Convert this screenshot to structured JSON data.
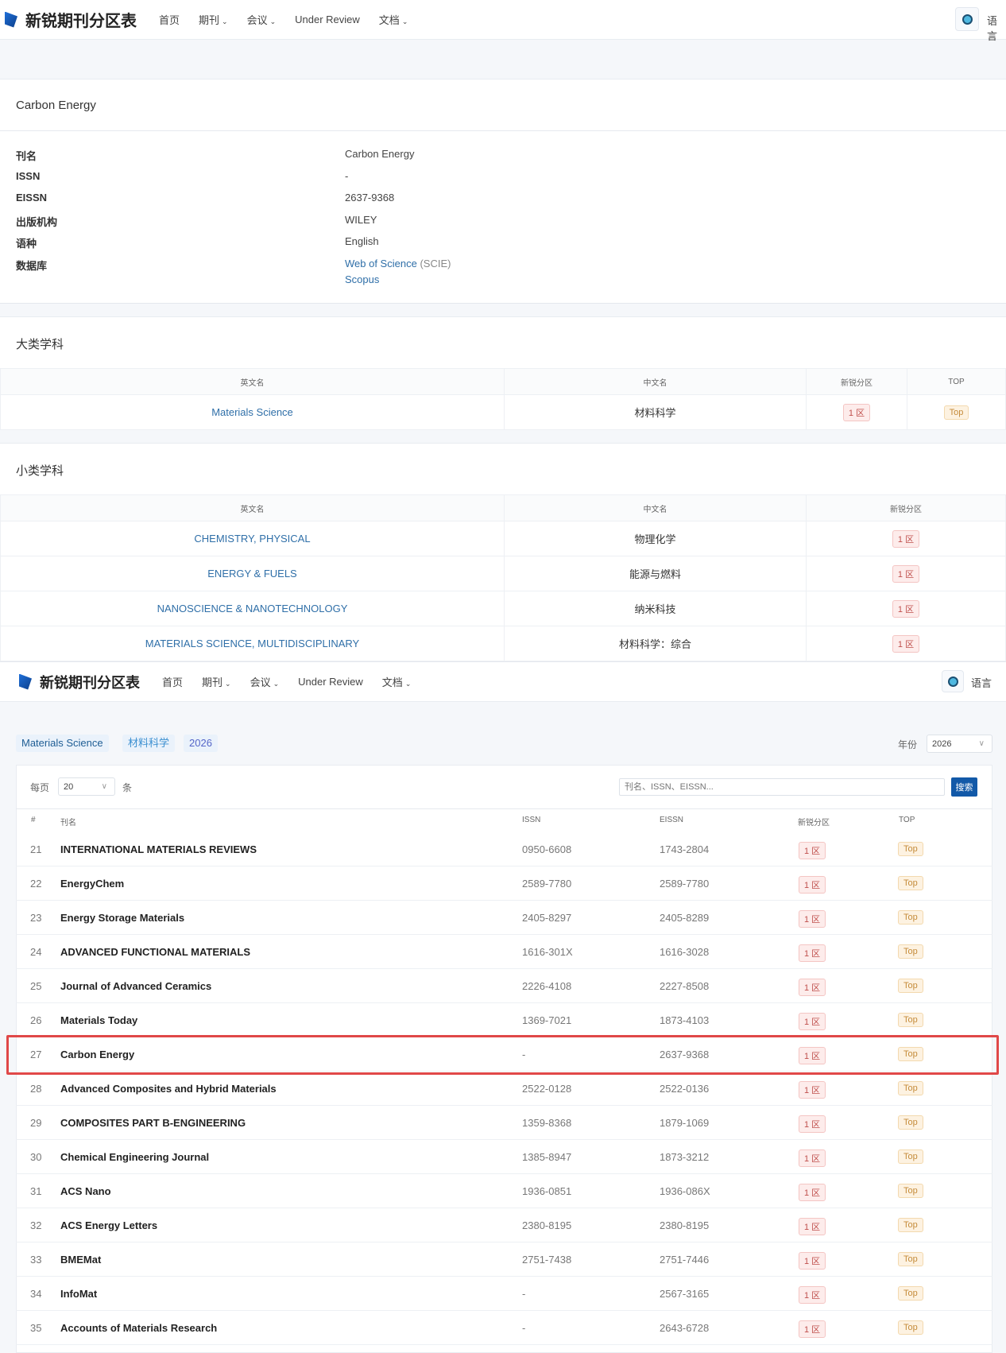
{
  "nav": {
    "brand": "新锐期刊分区表",
    "items": [
      "首页",
      "期刊",
      "会议",
      "Under Review",
      "文档"
    ],
    "dropdown_caret": "⌄",
    "language": "语言"
  },
  "journal": {
    "title": "Carbon Energy",
    "fields": [
      {
        "label": "刊名",
        "value": "Carbon Energy"
      },
      {
        "label": "ISSN",
        "value": "-"
      },
      {
        "label": "EISSN",
        "value": "2637-9368"
      },
      {
        "label": "出版机构",
        "value": "WILEY"
      },
      {
        "label": "语种",
        "value": "English"
      },
      {
        "label": "数据库",
        "links": [
          "Web of Science",
          "Scopus"
        ],
        "wos_suffix": "(SCIE)"
      }
    ]
  },
  "major": {
    "title": "大类学科",
    "headers": [
      "英文名",
      "中文名",
      "新锐分区",
      "TOP"
    ],
    "row": {
      "en": "Materials Science",
      "cn": "材料科学",
      "zone": "1 区",
      "top": "Top"
    }
  },
  "minor": {
    "title": "小类学科",
    "headers": [
      "英文名",
      "中文名",
      "新锐分区"
    ],
    "rows": [
      {
        "en": "CHEMISTRY, PHYSICAL",
        "cn": "物理化学",
        "zone": "1 区"
      },
      {
        "en": "ENERGY & FUELS",
        "cn": "能源与燃料",
        "zone": "1 区"
      },
      {
        "en": "NANOSCIENCE & NANOTECHNOLOGY",
        "cn": "纳米科技",
        "zone": "1 区"
      },
      {
        "en": "MATERIALS SCIENCE, MULTIDISCIPLINARY",
        "cn": "材料科学：综合",
        "zone": "1 区"
      }
    ]
  },
  "list": {
    "tags": [
      "Materials Science",
      "材料科学",
      "2026"
    ],
    "year_label": "年份",
    "year_value": "2026",
    "per_page_label": "每页",
    "per_page_value": "20",
    "per_page_unit": "条",
    "search_placeholder": "刊名、ISSN、EISSN...",
    "search_button": "搜索",
    "headers": [
      "#",
      "刊名",
      "ISSN",
      "EISSN",
      "新锐分区",
      "TOP"
    ],
    "highlighted_row": 27,
    "rows": [
      {
        "n": "21",
        "name": "INTERNATIONAL MATERIALS REVIEWS",
        "issn": "0950-6608",
        "eissn": "1743-2804",
        "zone": "1 区",
        "top": "Top"
      },
      {
        "n": "22",
        "name": "EnergyChem",
        "issn": "2589-7780",
        "eissn": "2589-7780",
        "zone": "1 区",
        "top": "Top"
      },
      {
        "n": "23",
        "name": "Energy Storage Materials",
        "issn": "2405-8297",
        "eissn": "2405-8289",
        "zone": "1 区",
        "top": "Top"
      },
      {
        "n": "24",
        "name": "ADVANCED FUNCTIONAL MATERIALS",
        "issn": "1616-301X",
        "eissn": "1616-3028",
        "zone": "1 区",
        "top": "Top"
      },
      {
        "n": "25",
        "name": "Journal of Advanced Ceramics",
        "issn": "2226-4108",
        "eissn": "2227-8508",
        "zone": "1 区",
        "top": "Top"
      },
      {
        "n": "26",
        "name": "Materials Today",
        "issn": "1369-7021",
        "eissn": "1873-4103",
        "zone": "1 区",
        "top": "Top"
      },
      {
        "n": "27",
        "name": "Carbon Energy",
        "issn": "-",
        "eissn": "2637-9368",
        "zone": "1 区",
        "top": "Top"
      },
      {
        "n": "28",
        "name": "Advanced Composites and Hybrid Materials",
        "issn": "2522-0128",
        "eissn": "2522-0136",
        "zone": "1 区",
        "top": "Top"
      },
      {
        "n": "29",
        "name": "COMPOSITES PART B-ENGINEERING",
        "issn": "1359-8368",
        "eissn": "1879-1069",
        "zone": "1 区",
        "top": "Top"
      },
      {
        "n": "30",
        "name": "Chemical Engineering Journal",
        "issn": "1385-8947",
        "eissn": "1873-3212",
        "zone": "1 区",
        "top": "Top"
      },
      {
        "n": "31",
        "name": "ACS Nano",
        "issn": "1936-0851",
        "eissn": "1936-086X",
        "zone": "1 区",
        "top": "Top"
      },
      {
        "n": "32",
        "name": "ACS Energy Letters",
        "issn": "2380-8195",
        "eissn": "2380-8195",
        "zone": "1 区",
        "top": "Top"
      },
      {
        "n": "33",
        "name": "BMEMat",
        "issn": "2751-7438",
        "eissn": "2751-7446",
        "zone": "1 区",
        "top": "Top"
      },
      {
        "n": "34",
        "name": "InfoMat",
        "issn": "-",
        "eissn": "2567-3165",
        "zone": "1 区",
        "top": "Top"
      },
      {
        "n": "35",
        "name": "Accounts of Materials Research",
        "issn": "-",
        "eissn": "2643-6728",
        "zone": "1 区",
        "top": "Top"
      }
    ]
  },
  "colors": {
    "link": "#2f6fa8",
    "zone_badge": "#c0504d",
    "top_badge": "#c58b3a",
    "search_button": "#1259a8",
    "highlight": "#e04848"
  }
}
